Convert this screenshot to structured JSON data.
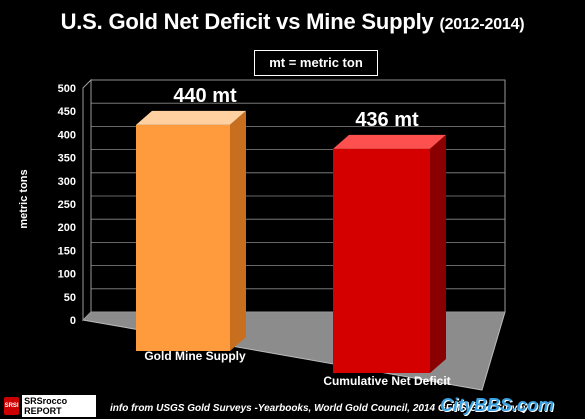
{
  "title": {
    "main": "U.S. Gold Net Deficit vs Mine Supply",
    "years": "(2012-2014)"
  },
  "legend_note": "mt = metric ton",
  "footer": "info from USGS Gold Surveys -Yearbooks, World Gold Council, 2014 GFMS Gold Survey",
  "logo": {
    "mark": "SRSI",
    "word": "SRSrocco REPORT"
  },
  "watermark": "CityBBS.com",
  "colors": {
    "bar1": "#ff9b3d",
    "bar2": "#d40000",
    "background": "#000000",
    "floor": "#8c8c8c",
    "wall": "#000000"
  },
  "chart_data": {
    "type": "bar",
    "title": "U.S. Gold Net Deficit vs Mine Supply (2012-2014)",
    "ylabel": "metric tons",
    "xlabel": "",
    "categories": [
      "Gold Mine Supply",
      "Cumulative Net Deficit"
    ],
    "values": [
      440,
      436
    ],
    "data_labels": [
      "440 mt",
      "436 mt"
    ],
    "ylim": [
      0,
      500
    ],
    "yticks": [
      0,
      50,
      100,
      150,
      200,
      250,
      300,
      350,
      400,
      450,
      500
    ],
    "grid": true,
    "legend": "top-center"
  }
}
